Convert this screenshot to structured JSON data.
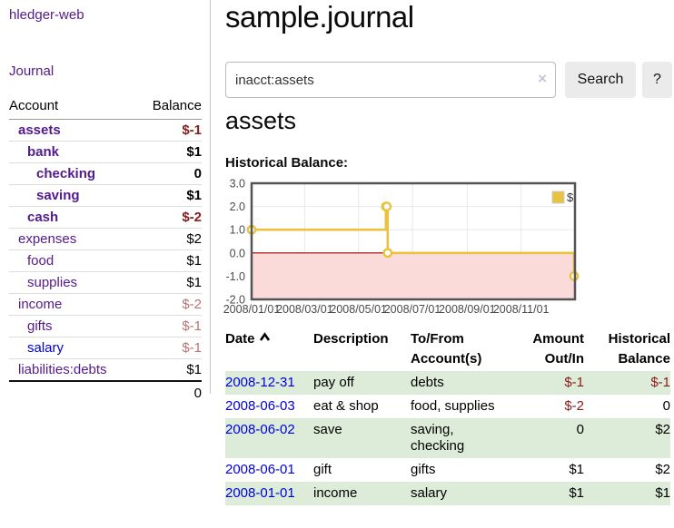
{
  "colors": {
    "accent_purple": "#551a8b",
    "link_blue": "#0000dd",
    "negative_strong": "#8b1a1a",
    "negative_muted": "#bb7272",
    "row_green": "#dcecd8"
  },
  "sidebar": {
    "app_title": "hledger-web",
    "nav": {
      "journal": "Journal"
    },
    "accounts_table": {
      "headers": {
        "account": "Account",
        "balance": "Balance"
      },
      "rows": [
        {
          "label": "assets",
          "depth": 1,
          "bold": true,
          "balance": "$-1",
          "balance_class": "neg-strong"
        },
        {
          "label": "bank",
          "depth": 2,
          "bold": true,
          "balance": "$1"
        },
        {
          "label": "checking",
          "depth": 3,
          "bold": true,
          "balance": "0"
        },
        {
          "label": "saving",
          "depth": 3,
          "bold": true,
          "balance": "$1"
        },
        {
          "label": "cash",
          "depth": 2,
          "bold": true,
          "balance": "$-2",
          "balance_class": "neg-strong"
        },
        {
          "label": "expenses",
          "depth": 1,
          "bold": false,
          "balance": "$2"
        },
        {
          "label": "food",
          "depth": 2,
          "bold": false,
          "balance": "$1"
        },
        {
          "label": "supplies",
          "depth": 2,
          "bold": false,
          "balance": "$1"
        },
        {
          "label": "income",
          "depth": 1,
          "bold": false,
          "balance": "$-2",
          "balance_class": "neg-muted"
        },
        {
          "label": "gifts",
          "depth": 2,
          "bold": false,
          "balance": "$-1",
          "balance_class": "neg-muted"
        },
        {
          "label": "salary",
          "depth": 2,
          "bold": false,
          "balance": "$-1",
          "balance_class": "neg-muted",
          "link_variant": "blue"
        },
        {
          "label": "liabilities:debts",
          "depth": 1,
          "bold": false,
          "balance": "$1"
        }
      ],
      "total": "0"
    }
  },
  "main": {
    "title": "sample.journal",
    "search": {
      "value": "inacct:assets",
      "clear_label": "×",
      "button_label": "Search",
      "help_label": "?"
    },
    "account_heading": "assets",
    "chart_label": "Historical Balance:",
    "transactions": {
      "headers": {
        "date": "Date",
        "description": "Description",
        "tofrom": "To/From\nAccount(s)",
        "amount": "Amount\nOut/In",
        "balance": "Historical\nBalance"
      },
      "rows": [
        {
          "date": "2008-12-31",
          "description": "pay off",
          "accounts": [
            "debts"
          ],
          "amount": "$-1",
          "amount_class": "neg",
          "balance": "$-1",
          "balance_class": "neg"
        },
        {
          "date": "2008-06-03",
          "description": "eat & shop",
          "accounts": [
            "food, supplies"
          ],
          "amount": "$-2",
          "amount_class": "neg",
          "balance": "0",
          "balance_class": ""
        },
        {
          "date": "2008-06-02",
          "description": "save",
          "accounts": [
            "saving,",
            "checking"
          ],
          "amount": "0",
          "amount_class": "",
          "balance": "$2",
          "balance_class": ""
        },
        {
          "date": "2008-06-01",
          "description": "gift",
          "accounts": [
            "gifts"
          ],
          "amount": "$1",
          "amount_class": "",
          "balance": "$2",
          "balance_class": ""
        },
        {
          "date": "2008-01-01",
          "description": "income",
          "accounts": [
            "salary"
          ],
          "amount": "$1",
          "amount_class": "",
          "balance": "$1",
          "balance_class": ""
        }
      ]
    }
  },
  "chart_data": {
    "type": "line",
    "title": "Historical Balance:",
    "legend": {
      "label": "$",
      "position": "top-right"
    },
    "x_range": [
      "2008-01-01",
      "2009-01-01"
    ],
    "ylim": [
      -2,
      3
    ],
    "y_ticks": [
      {
        "v": 3,
        "label": "3.0"
      },
      {
        "v": 2,
        "label": "2.0"
      },
      {
        "v": 1,
        "label": "1.0"
      },
      {
        "v": 0,
        "label": "0.0"
      },
      {
        "v": -1,
        "label": "-1.0"
      },
      {
        "v": -2,
        "label": "-2.0"
      }
    ],
    "x_ticks": [
      {
        "date": "2008-01-01",
        "label": "2008/01/01"
      },
      {
        "date": "2008-03-01",
        "label": "2008/03/01"
      },
      {
        "date": "2008-05-01",
        "label": "2008/05/01"
      },
      {
        "date": "2008-07-01",
        "label": "2008/07/01"
      },
      {
        "date": "2008-09-01",
        "label": "2008/09/01"
      },
      {
        "date": "2008-11-01",
        "label": "2008/11/01"
      }
    ],
    "series": [
      {
        "name": "$",
        "steps": true,
        "points": [
          [
            "2008-01-01",
            1
          ],
          [
            "2008-06-01",
            2
          ],
          [
            "2008-06-02",
            2
          ],
          [
            "2008-06-03",
            0
          ],
          [
            "2008-12-31",
            -1
          ]
        ]
      }
    ],
    "grid": true,
    "negative_region_shaded": true,
    "colors": {
      "line": "#e8c240",
      "marker_fill": "#ffffff",
      "negative_fill": "#fbdada",
      "zero_line": "#a40000",
      "border": "#545454",
      "grid": "#e8e8e8",
      "tick_text": "#4a4a4a"
    }
  }
}
